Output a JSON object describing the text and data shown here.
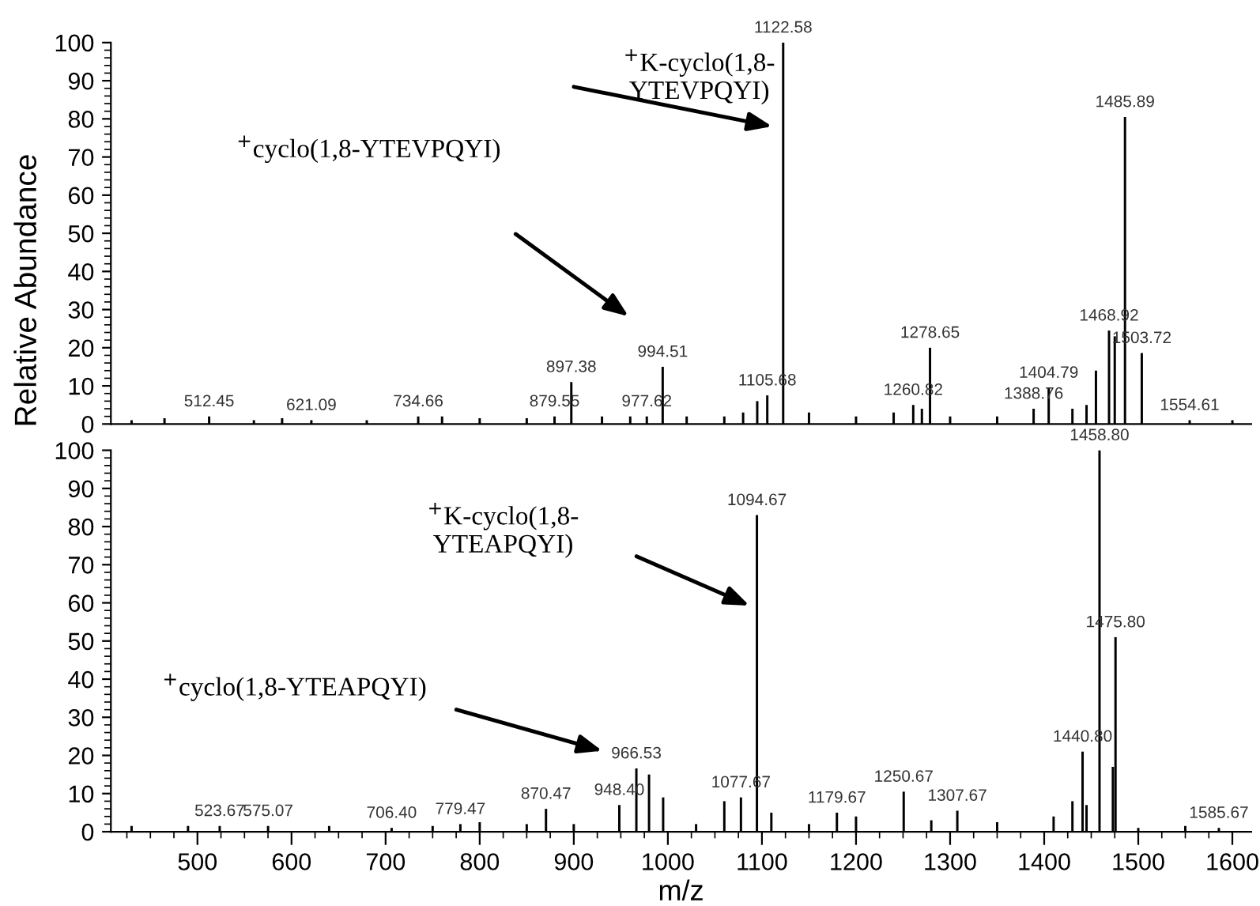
{
  "chart_data": [
    {
      "type": "bar",
      "ylabel": "Relative Abundance",
      "tick_labels": "y",
      "xlim": [
        408,
        1620
      ],
      "ylim": [
        0,
        100
      ],
      "yticks": [
        0,
        10,
        20,
        30,
        40,
        50,
        60,
        70,
        80,
        90,
        100
      ],
      "series": [
        {
          "color": "#000000",
          "x": [
            430,
            465,
            512.45,
            560,
            590,
            621.09,
            680,
            734.66,
            760,
            800,
            850,
            879.55,
            897.38,
            930,
            960,
            977.62,
            994.51,
            1020,
            1060,
            1080,
            1095,
            1105.68,
            1122.58,
            1150,
            1200,
            1240,
            1260.82,
            1270,
            1278.65,
            1300,
            1350,
            1388.76,
            1404.79,
            1430,
            1445,
            1455,
            1468.92,
            1475,
            1485.89,
            1503.72,
            1554.61,
            1600
          ],
          "values": [
            1,
            1.5,
            2,
            1,
            1.5,
            1,
            1,
            2,
            2,
            1.5,
            1.5,
            2,
            11,
            2,
            2,
            2,
            15,
            2,
            2,
            3,
            6,
            7.5,
            100,
            3,
            2,
            3,
            5,
            4,
            20,
            2,
            2,
            4,
            9.5,
            4,
            5,
            14,
            24.5,
            23,
            80.5,
            18.6,
            1,
            1
          ]
        }
      ],
      "annotations": [
        "$^{+}$K-cyclo(1,8-\nYTEVPQYI)",
        "$^{+}$cyclo(1,8-YTEVPQYI)",
        {
          "text": "512.45",
          "x": 512.45,
          "y": 2
        },
        {
          "text": "621.09",
          "x": 621.09,
          "y": 1
        },
        {
          "text": "734.66",
          "x": 734.66,
          "y": 2
        },
        {
          "text": "879.55",
          "x": 879.55,
          "y": 2
        },
        {
          "text": "897.38",
          "x": 897.38,
          "y": 11
        },
        {
          "text": "977.62",
          "x": 977.62,
          "y": 2
        },
        {
          "text": "994.51",
          "x": 994.51,
          "y": 15
        },
        {
          "text": "1105.68",
          "x": 1105.68,
          "y": 7.5
        },
        {
          "text": "1122.58",
          "x": 1122.58,
          "y": 100
        },
        {
          "text": "1260.82",
          "x": 1260.82,
          "y": 5
        },
        {
          "text": "1278.65",
          "x": 1278.65,
          "y": 20
        },
        {
          "text": "1388.76",
          "x": 1388.76,
          "y": 4
        },
        {
          "text": "1404.79",
          "x": 1404.79,
          "y": 9.5
        },
        {
          "text": "1468.92",
          "x": 1468.92,
          "y": 24.5
        },
        {
          "text": "1485.89",
          "x": 1485.89,
          "y": 80.5
        },
        {
          "text": "1503.72",
          "x": 1503.72,
          "y": 18.6
        },
        {
          "text": "1554.61",
          "x": 1554.61,
          "y": 1
        }
      ]
    },
    {
      "type": "bar",
      "xlabel": "m/z",
      "xlim": [
        408,
        1620
      ],
      "xticks": [
        500,
        600,
        700,
        800,
        900,
        1000,
        1100,
        1200,
        1300,
        1400,
        1500,
        1600
      ],
      "ylim": [
        0,
        100
      ],
      "yticks": [
        0,
        10,
        20,
        30,
        40,
        50,
        60,
        70,
        80,
        90,
        100
      ],
      "series": [
        {
          "color": "#000000",
          "x": [
            430,
            490,
            523.67,
            575.07,
            640,
            706.4,
            750,
            779.47,
            800,
            850,
            870.47,
            900,
            948.4,
            966.53,
            980,
            995,
            1030,
            1060,
            1077.67,
            1094.67,
            1110,
            1150,
            1179.67,
            1200,
            1250.67,
            1280,
            1307.67,
            1350,
            1410,
            1430,
            1440.8,
            1445,
            1458.8,
            1473,
            1475.8,
            1500,
            1550,
            1585.67
          ],
          "values": [
            1.5,
            1.5,
            1.5,
            1.5,
            1.5,
            1,
            1.5,
            2,
            2.5,
            2,
            6,
            2,
            7,
            16.6,
            15,
            9,
            2,
            8,
            9,
            83,
            5,
            2,
            5,
            4,
            10.5,
            3,
            5.5,
            2.5,
            4,
            8,
            21,
            7,
            100,
            17,
            51,
            1,
            1.5,
            1
          ]
        }
      ],
      "annotations": [
        "$^{+}$K-cyclo(1,8-\nYTEAPQYI)",
        "$^{+}$cyclo(1,8-YTEAPQYI)",
        {
          "text": "523.67",
          "x": 523.67,
          "y": 1.5
        },
        {
          "text": "575.07",
          "x": 575.07,
          "y": 1.5
        },
        {
          "text": "706.40",
          "x": 706.4,
          "y": 1
        },
        {
          "text": "779.47",
          "x": 779.47,
          "y": 2
        },
        {
          "text": "870.47",
          "x": 870.47,
          "y": 6
        },
        {
          "text": "948.40",
          "x": 948.4,
          "y": 7
        },
        {
          "text": "966.53",
          "x": 966.53,
          "y": 16.6
        },
        {
          "text": "1077.67",
          "x": 1077.67,
          "y": 9
        },
        {
          "text": "1094.67",
          "x": 1094.67,
          "y": 83
        },
        {
          "text": "1179.67",
          "x": 1179.67,
          "y": 5
        },
        {
          "text": "1250.67",
          "x": 1250.67,
          "y": 10.5
        },
        {
          "text": "1307.67",
          "x": 1307.67,
          "y": 5.5
        },
        {
          "text": "1440.80",
          "x": 1440.8,
          "y": 21
        },
        {
          "text": "1458.80",
          "x": 1458.8,
          "y": 100
        },
        {
          "text": "1475.80",
          "x": 1475.8,
          "y": 51
        },
        {
          "text": "1585.67",
          "x": 1585.67,
          "y": 1
        }
      ]
    }
  ]
}
